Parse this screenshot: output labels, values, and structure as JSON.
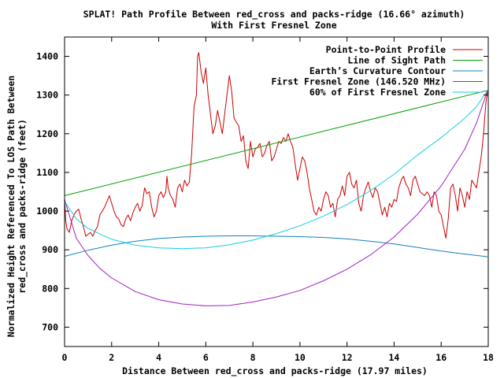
{
  "chart_data": {
    "type": "line",
    "title": "SPLAT! Path Profile Between red_cross and packs-ridge (16.66° azimuth)",
    "subtitle": "With First Fresnel Zone",
    "xlabel": "Distance Between red_cross and packs-ridge (17.97 miles)",
    "ylabel": "Normalized Height Referenced To LOS Path Between",
    "ylabel2": "red_cross and packs-ridge (feet)",
    "xlim": [
      0,
      18
    ],
    "ylim": [
      650,
      1450
    ],
    "xticks": [
      "0",
      "2",
      "4",
      "6",
      "8",
      "10",
      "12",
      "14",
      "16",
      "18"
    ],
    "yticks": [
      "700",
      "800",
      "900",
      "1000",
      "1100",
      "1200",
      "1300",
      "1400"
    ],
    "grid": false,
    "legend_position": "top-right",
    "series": [
      {
        "name": "Point-to-Point Profile",
        "color": "#cc0000",
        "points": [
          [
            0,
            1030
          ],
          [
            0.05,
            975
          ],
          [
            0.1,
            955
          ],
          [
            0.2,
            945
          ],
          [
            0.3,
            975
          ],
          [
            0.4,
            990
          ],
          [
            0.5,
            1000
          ],
          [
            0.6,
            1005
          ],
          [
            0.7,
            980
          ],
          [
            0.8,
            960
          ],
          [
            0.9,
            935
          ],
          [
            1.0,
            940
          ],
          [
            1.1,
            945
          ],
          [
            1.2,
            935
          ],
          [
            1.3,
            950
          ],
          [
            1.4,
            960
          ],
          [
            1.5,
            990
          ],
          [
            1.6,
            1000
          ],
          [
            1.7,
            1010
          ],
          [
            1.8,
            1025
          ],
          [
            1.9,
            1040
          ],
          [
            2.0,
            1020
          ],
          [
            2.1,
            1000
          ],
          [
            2.2,
            985
          ],
          [
            2.3,
            980
          ],
          [
            2.4,
            965
          ],
          [
            2.5,
            960
          ],
          [
            2.6,
            980
          ],
          [
            2.7,
            990
          ],
          [
            2.8,
            975
          ],
          [
            2.9,
            995
          ],
          [
            3.0,
            1010
          ],
          [
            3.1,
            1020
          ],
          [
            3.2,
            1000
          ],
          [
            3.3,
            1015
          ],
          [
            3.4,
            1060
          ],
          [
            3.5,
            1045
          ],
          [
            3.6,
            1050
          ],
          [
            3.7,
            1010
          ],
          [
            3.8,
            985
          ],
          [
            3.9,
            1000
          ],
          [
            4.0,
            1040
          ],
          [
            4.1,
            1050
          ],
          [
            4.2,
            1035
          ],
          [
            4.3,
            1050
          ],
          [
            4.35,
            1090
          ],
          [
            4.4,
            1060
          ],
          [
            4.5,
            1040
          ],
          [
            4.6,
            1030
          ],
          [
            4.7,
            1010
          ],
          [
            4.8,
            1060
          ],
          [
            4.9,
            1070
          ],
          [
            5.0,
            1050
          ],
          [
            5.1,
            1080
          ],
          [
            5.2,
            1065
          ],
          [
            5.3,
            1075
          ],
          [
            5.4,
            1150
          ],
          [
            5.5,
            1270
          ],
          [
            5.6,
            1300
          ],
          [
            5.65,
            1400
          ],
          [
            5.7,
            1410
          ],
          [
            5.8,
            1360
          ],
          [
            5.9,
            1330
          ],
          [
            6.0,
            1370
          ],
          [
            6.1,
            1300
          ],
          [
            6.2,
            1250
          ],
          [
            6.3,
            1200
          ],
          [
            6.4,
            1220
          ],
          [
            6.5,
            1260
          ],
          [
            6.6,
            1230
          ],
          [
            6.7,
            1200
          ],
          [
            6.8,
            1250
          ],
          [
            6.9,
            1300
          ],
          [
            7.0,
            1350
          ],
          [
            7.1,
            1310
          ],
          [
            7.2,
            1240
          ],
          [
            7.3,
            1230
          ],
          [
            7.4,
            1220
          ],
          [
            7.5,
            1180
          ],
          [
            7.6,
            1195
          ],
          [
            7.7,
            1130
          ],
          [
            7.8,
            1110
          ],
          [
            7.9,
            1180
          ],
          [
            8.0,
            1140
          ],
          [
            8.1,
            1160
          ],
          [
            8.2,
            1165
          ],
          [
            8.3,
            1175
          ],
          [
            8.4,
            1140
          ],
          [
            8.5,
            1150
          ],
          [
            8.6,
            1170
          ],
          [
            8.7,
            1180
          ],
          [
            8.8,
            1130
          ],
          [
            8.9,
            1140
          ],
          [
            9.0,
            1160
          ],
          [
            9.1,
            1180
          ],
          [
            9.2,
            1175
          ],
          [
            9.3,
            1190
          ],
          [
            9.4,
            1180
          ],
          [
            9.5,
            1200
          ],
          [
            9.6,
            1180
          ],
          [
            9.7,
            1165
          ],
          [
            9.8,
            1120
          ],
          [
            9.9,
            1080
          ],
          [
            10.0,
            1110
          ],
          [
            10.1,
            1140
          ],
          [
            10.2,
            1130
          ],
          [
            10.3,
            1100
          ],
          [
            10.4,
            1060
          ],
          [
            10.5,
            1030
          ],
          [
            10.6,
            1000
          ],
          [
            10.7,
            990
          ],
          [
            10.8,
            1010
          ],
          [
            10.9,
            1000
          ],
          [
            11.0,
            1030
          ],
          [
            11.1,
            1050
          ],
          [
            11.2,
            1040
          ],
          [
            11.3,
            1010
          ],
          [
            11.4,
            1020
          ],
          [
            11.5,
            985
          ],
          [
            11.6,
            1030
          ],
          [
            11.7,
            1040
          ],
          [
            11.8,
            1065
          ],
          [
            11.9,
            1040
          ],
          [
            12.0,
            1090
          ],
          [
            12.1,
            1100
          ],
          [
            12.2,
            1070
          ],
          [
            12.3,
            1060
          ],
          [
            12.4,
            1080
          ],
          [
            12.5,
            1020
          ],
          [
            12.6,
            1000
          ],
          [
            12.7,
            1040
          ],
          [
            12.8,
            1060
          ],
          [
            12.9,
            1075
          ],
          [
            13.0,
            1050
          ],
          [
            13.1,
            1035
          ],
          [
            13.2,
            1060
          ],
          [
            13.3,
            1050
          ],
          [
            13.4,
            1020
          ],
          [
            13.5,
            990
          ],
          [
            13.6,
            1010
          ],
          [
            13.7,
            985
          ],
          [
            13.8,
            1020
          ],
          [
            13.9,
            1010
          ],
          [
            14.0,
            1030
          ],
          [
            14.1,
            1025
          ],
          [
            14.2,
            1060
          ],
          [
            14.3,
            1080
          ],
          [
            14.4,
            1090
          ],
          [
            14.5,
            1070
          ],
          [
            14.6,
            1060
          ],
          [
            14.7,
            1040
          ],
          [
            14.8,
            1080
          ],
          [
            14.9,
            1090
          ],
          [
            15.0,
            1070
          ],
          [
            15.1,
            1050
          ],
          [
            15.2,
            1045
          ],
          [
            15.3,
            1040
          ],
          [
            15.4,
            1050
          ],
          [
            15.5,
            1040
          ],
          [
            15.6,
            1010
          ],
          [
            15.7,
            1050
          ],
          [
            15.8,
            1040
          ],
          [
            15.9,
            1000
          ],
          [
            16.0,
            990
          ],
          [
            16.1,
            960
          ],
          [
            16.2,
            930
          ],
          [
            16.3,
            980
          ],
          [
            16.4,
            1060
          ],
          [
            16.5,
            1070
          ],
          [
            16.6,
            1040
          ],
          [
            16.7,
            1000
          ],
          [
            16.8,
            1060
          ],
          [
            16.9,
            1040
          ],
          [
            17.0,
            1010
          ],
          [
            17.1,
            1050
          ],
          [
            17.2,
            1030
          ],
          [
            17.3,
            1080
          ],
          [
            17.4,
            1070
          ],
          [
            17.5,
            1060
          ],
          [
            17.6,
            1100
          ],
          [
            17.7,
            1140
          ],
          [
            17.8,
            1200
          ],
          [
            17.9,
            1280
          ],
          [
            17.97,
            1310
          ]
        ]
      },
      {
        "name": "Line of Sight Path",
        "color": "#00a000",
        "points": [
          [
            0,
            1040
          ],
          [
            17.97,
            1312
          ]
        ]
      },
      {
        "name": "Earth’s Curvature Contour",
        "color": "#1080c0",
        "points": [
          [
            0,
            883
          ],
          [
            1,
            899
          ],
          [
            2,
            912
          ],
          [
            3,
            922
          ],
          [
            4,
            929
          ],
          [
            5,
            933
          ],
          [
            6,
            935
          ],
          [
            7,
            936
          ],
          [
            8,
            936
          ],
          [
            9,
            935
          ],
          [
            10,
            934
          ],
          [
            11,
            932
          ],
          [
            12,
            928
          ],
          [
            13,
            922
          ],
          [
            14,
            915
          ],
          [
            15,
            906
          ],
          [
            16,
            897
          ],
          [
            17,
            889
          ],
          [
            17.97,
            882
          ]
        ]
      },
      {
        "name": "First Fresnel Zone (146.520 MHz)",
        "color": "#a020c0",
        "points": [
          [
            0,
            1030
          ],
          [
            0.5,
            930
          ],
          [
            1,
            885
          ],
          [
            1.5,
            852
          ],
          [
            2,
            827
          ],
          [
            3,
            792
          ],
          [
            4,
            771
          ],
          [
            5,
            760
          ],
          [
            6,
            755
          ],
          [
            7,
            756
          ],
          [
            8,
            765
          ],
          [
            9,
            778
          ],
          [
            10,
            795
          ],
          [
            11,
            820
          ],
          [
            12,
            850
          ],
          [
            13,
            887
          ],
          [
            14,
            933
          ],
          [
            15,
            992
          ],
          [
            16,
            1065
          ],
          [
            17,
            1160
          ],
          [
            17.5,
            1228
          ],
          [
            17.97,
            1312
          ]
        ]
      },
      {
        "name": "60% of First Fresnel Zone",
        "color": "#10d0e0",
        "points": [
          [
            0,
            1025
          ],
          [
            0.5,
            980
          ],
          [
            1,
            955
          ],
          [
            2,
            927
          ],
          [
            3,
            912
          ],
          [
            4,
            905
          ],
          [
            5,
            903
          ],
          [
            6,
            905
          ],
          [
            7,
            913
          ],
          [
            8,
            925
          ],
          [
            9,
            942
          ],
          [
            10,
            962
          ],
          [
            11,
            987
          ],
          [
            12,
            1017
          ],
          [
            13,
            1053
          ],
          [
            14,
            1095
          ],
          [
            15,
            1145
          ],
          [
            16,
            1190
          ],
          [
            17,
            1240
          ],
          [
            17.5,
            1270
          ],
          [
            17.97,
            1312
          ]
        ]
      }
    ]
  }
}
